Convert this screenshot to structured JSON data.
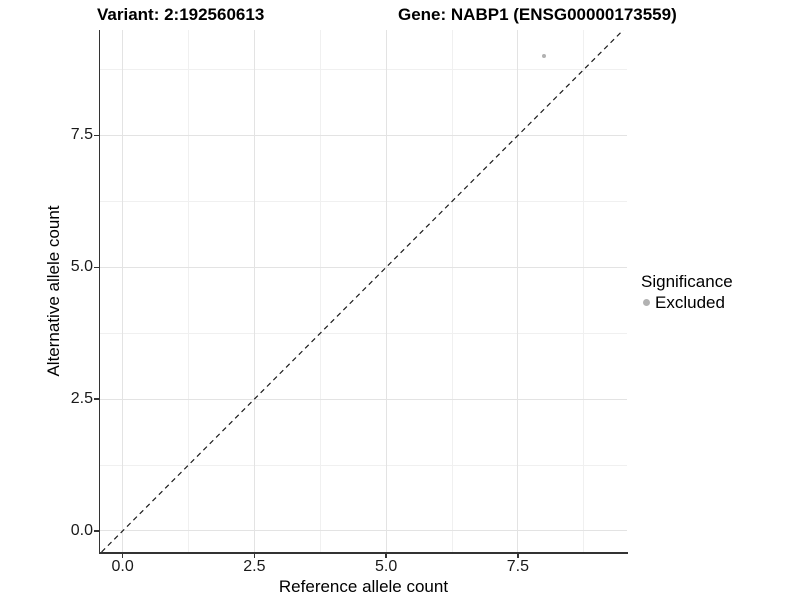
{
  "chart_data": {
    "type": "scatter",
    "titles": {
      "variant": "Variant: 2:192560613",
      "gene": "Gene: NABP1 (ENSG00000173559)"
    },
    "xlabel": "Reference allele count",
    "ylabel": "Alternative allele count",
    "xlim": [
      -0.43,
      9.57
    ],
    "ylim": [
      -0.4,
      9.5
    ],
    "x_ticks": {
      "values": [
        0,
        2.5,
        5,
        7.5
      ],
      "labels": [
        "0.0",
        "2.5",
        "5.0",
        "7.5"
      ]
    },
    "y_ticks": {
      "values": [
        0,
        2.5,
        5,
        7.5
      ],
      "labels": [
        "0.0",
        "2.5",
        "5.0",
        "7.5"
      ]
    },
    "x_minor": [
      1.25,
      3.75,
      6.25,
      8.75
    ],
    "y_minor": [
      1.25,
      3.75,
      6.25,
      8.75
    ],
    "grid": "major+minor",
    "series": [
      {
        "name": "Excluded",
        "color": "#b2b2b2",
        "points": [
          {
            "x": 8,
            "y": 9
          }
        ]
      }
    ],
    "reference_line": {
      "kind": "identity y=x",
      "style": "dashed",
      "color": "#1a1a1a"
    },
    "legend": {
      "position": "right",
      "title": "Significance",
      "items": [
        {
          "label": "Excluded",
          "color": "#b2b2b2",
          "marker": "circle"
        }
      ]
    }
  },
  "colors": {
    "background": "#ffffff",
    "axis": "#333333",
    "grid_major": "#e3e3e3",
    "grid_minor": "#f0f0f0",
    "text": "#000000"
  }
}
